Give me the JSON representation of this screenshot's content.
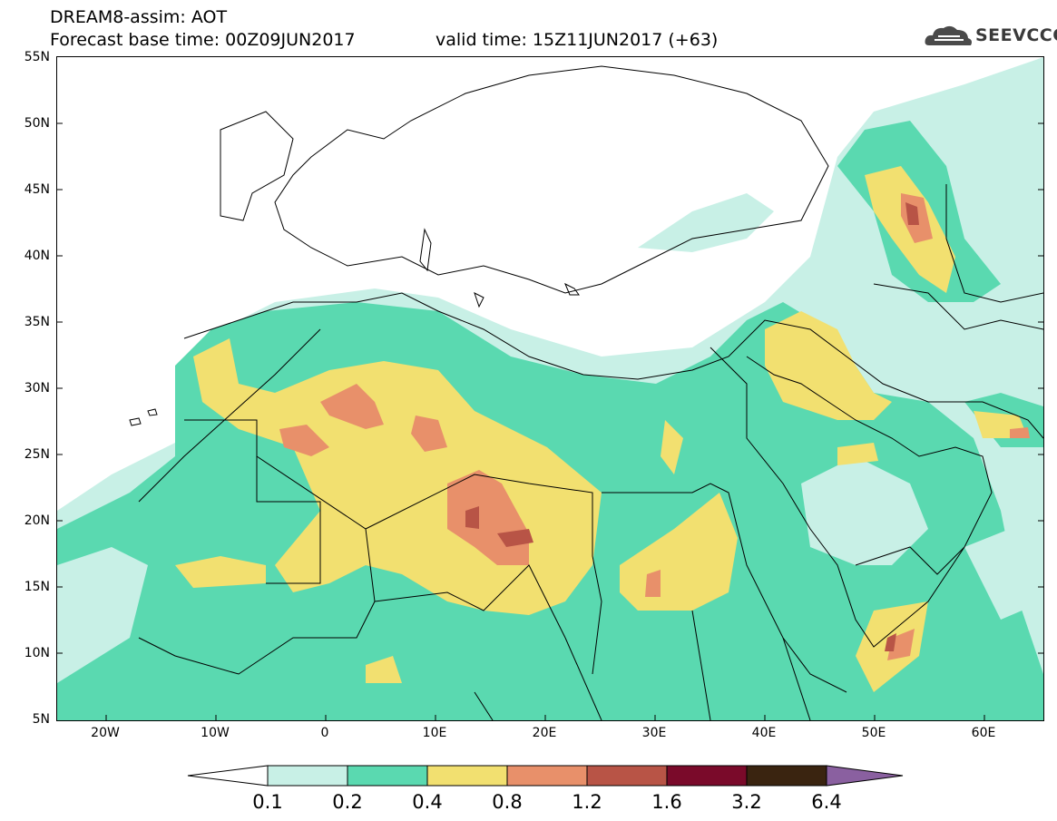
{
  "header": {
    "title": "DREAM8-assim: AOT",
    "base_time": "Forecast base time: 00Z09JUN2017",
    "valid_time": "valid time: 15Z11JUN2017 (+63)"
  },
  "logo": {
    "text": "SEEVCCC",
    "icon": "cloud-logo-icon",
    "color": "#4a4a4a"
  },
  "map": {
    "lat_labels": [
      "55N",
      "50N",
      "45N",
      "40N",
      "35N",
      "30N",
      "25N",
      "20N",
      "15N",
      "10N",
      "5N"
    ],
    "lon_labels": [
      "20W",
      "10W",
      "0",
      "10E",
      "20E",
      "30E",
      "40E",
      "50E",
      "60E"
    ],
    "lat_range": [
      5,
      55
    ],
    "lon_range": [
      -25,
      65
    ]
  },
  "legend": {
    "thresholds": [
      "0.1",
      "0.2",
      "0.4",
      "0.8",
      "1.2",
      "1.6",
      "3.2",
      "6.4"
    ],
    "colors": [
      "#ffffff",
      "#c8f0e6",
      "#5ad9b0",
      "#f2e070",
      "#e8906a",
      "#b85446",
      "#7a0a2a",
      "#3a2410",
      "#8a60a0"
    ]
  }
}
